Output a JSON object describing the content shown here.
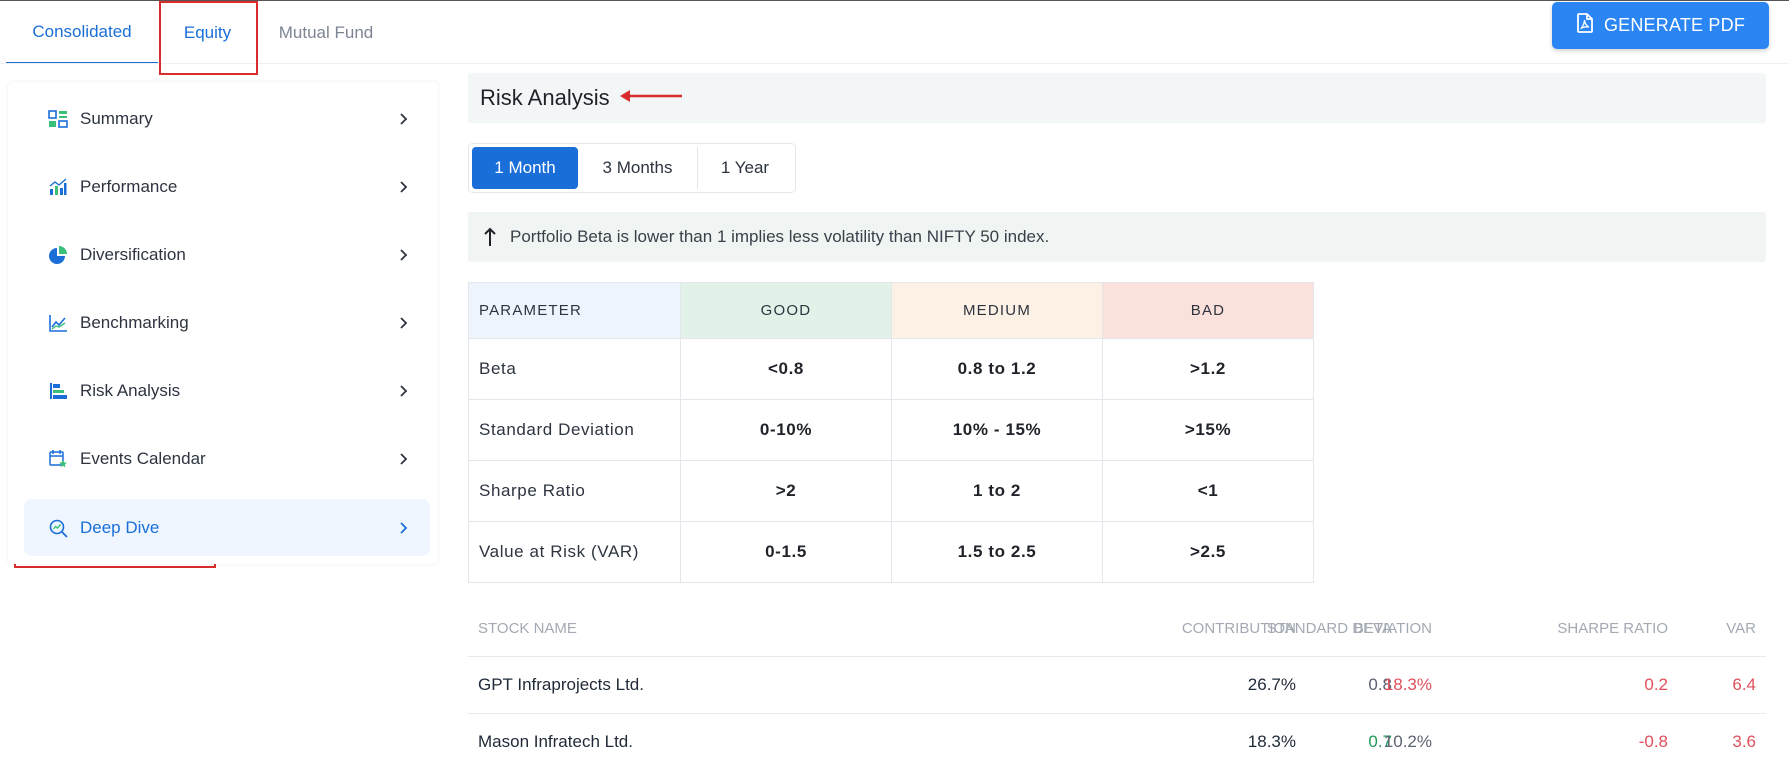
{
  "tabs": [
    {
      "label": "Consolidated"
    },
    {
      "label": "Equity"
    },
    {
      "label": "Mutual Fund"
    }
  ],
  "generate_pdf": {
    "label": "GENERATE PDF",
    "icon": "pdf-file-icon"
  },
  "sidebar": {
    "items": [
      {
        "label": "Summary",
        "icon": "summary-grid-icon"
      },
      {
        "label": "Performance",
        "icon": "bar-chart-icon"
      },
      {
        "label": "Diversification",
        "icon": "pie-chart-icon"
      },
      {
        "label": "Benchmarking",
        "icon": "line-chart-icon"
      },
      {
        "label": "Risk Analysis",
        "icon": "risk-bars-icon"
      },
      {
        "label": "Events Calendar",
        "icon": "calendar-star-icon"
      },
      {
        "label": "Deep Dive",
        "icon": "search-analysis-icon"
      }
    ]
  },
  "main": {
    "section_title": "Risk Analysis",
    "periods": [
      "1 Month",
      "3 Months",
      "1 Year"
    ],
    "selected_period": "1 Month",
    "note": "Portfolio Beta is lower than 1 implies less volatility than NIFTY 50 index."
  },
  "param_table": {
    "headers": [
      "PARAMETER",
      "GOOD",
      "MEDIUM",
      "BAD"
    ],
    "rows": [
      [
        "Beta",
        "<0.8",
        "0.8 to 1.2",
        ">1.2"
      ],
      [
        "Standard Deviation",
        "0-10%",
        "10% - 15%",
        ">15%"
      ],
      [
        "Sharpe Ratio",
        ">2",
        "1 to 2",
        "<1"
      ],
      [
        "Value at Risk (VAR)",
        "0-1.5",
        "1.5 to 2.5",
        ">2.5"
      ]
    ]
  },
  "stock_table": {
    "headers": {
      "name": "STOCK NAME",
      "contribution": "CONTRIBUTION",
      "beta": "BETA",
      "sd": "STANDARD DEVIATION",
      "sharpe": "SHARPE RATIO",
      "var": "VAR"
    },
    "rows": [
      {
        "name": "GPT Infraprojects Ltd.",
        "contribution": "26.7%",
        "beta": "0.8",
        "sd": "18.3%",
        "sharpe": "0.2",
        "var": "6.4"
      },
      {
        "name": "Mason Infratech Ltd.",
        "contribution": "18.3%",
        "beta": "0.7",
        "sd": "10.2%",
        "sharpe": "-0.8",
        "var": "3.6"
      }
    ]
  },
  "colors": {
    "accent": "#1a6ed8",
    "button": "#2b86f4",
    "annotation": "#d92c2c",
    "good_bg": "#e3f2e8",
    "medium_bg": "#fdf1e6",
    "bad_bg": "#fbe1dc",
    "negative": "#e0505c",
    "positive": "#1f9a5a"
  }
}
